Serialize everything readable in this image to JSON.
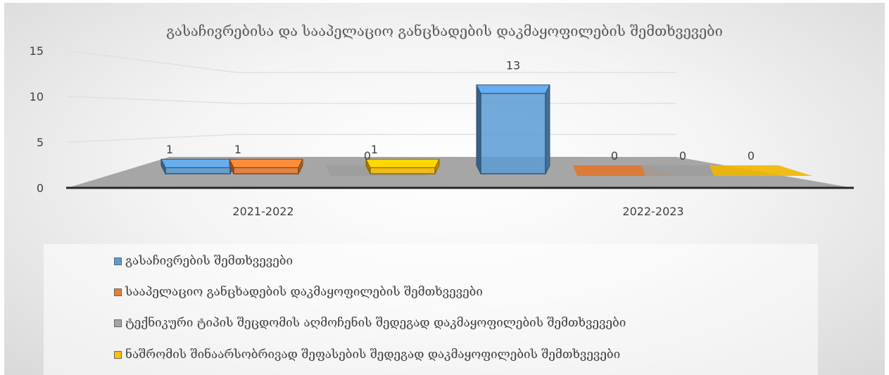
{
  "chart_data": {
    "type": "bar",
    "title": "გასაჩივრებისა და სააპელაციო განცხადების დაკმაყოფილების შემთხვევები",
    "categories": [
      "2021-2022",
      "2022-2023"
    ],
    "series": [
      {
        "name": "გასაჩივრების შემთხვევები",
        "values": [
          1,
          13
        ],
        "color": "#5B9BD5"
      },
      {
        "name": "სააპელაციო განცხადების დაკმაყოფილების შემთხვევები",
        "values": [
          1,
          0
        ],
        "color": "#ED7D31"
      },
      {
        "name": "ტექნიკური ტიპის შეცდომის აღმოჩენის შედეგად დაკმაყოფილების შემთხვევები",
        "values": [
          0,
          0
        ],
        "color": "#A5A5A5"
      },
      {
        "name": "ნაშრომის შინაარსობრივად შეფასების შედეგად დაკმაყოფილების შემთხვევები",
        "values": [
          1,
          0
        ],
        "color": "#FFC000"
      }
    ],
    "yticks": [
      "0",
      "5",
      "10",
      "15"
    ],
    "ylim": [
      0,
      15
    ],
    "grid": true,
    "legend_position": "bottom",
    "style": "3d-clustered"
  }
}
